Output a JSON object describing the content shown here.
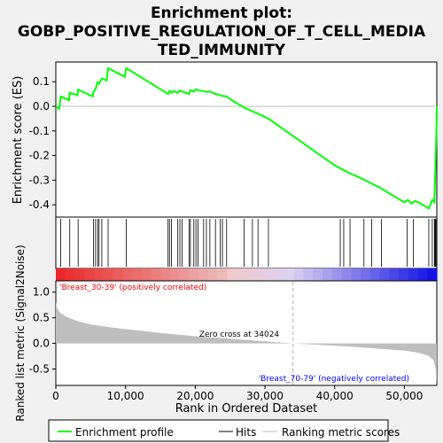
{
  "title": "Enrichment plot:\nGOBP_POSITIVE_REGULATION_OF_T_CELL_MEDIA\nTED_IMMUNITY",
  "title_lines": [
    "Enrichment plot:",
    "GOBP_POSITIVE_REGULATION_OF_T_CELL_MEDIA",
    "TED_IMMUNITY"
  ],
  "colors": {
    "es_line": "#00ff00",
    "hit_line": "#000000",
    "metric_fill": "#bebebe",
    "pos_label": "#ff0000",
    "neg_label": "#0000ff",
    "zero_line": "#bebebe",
    "background": "#f0f0f0",
    "plot_bg": "#ffffff"
  },
  "chart_data": {
    "type": "line",
    "x_max": 54650,
    "xlabel": "Rank in Ordered Dataset",
    "x_ticks": [
      0,
      10000,
      20000,
      30000,
      40000,
      50000
    ],
    "x_tick_labels": [
      "0",
      "10,000",
      "20,000",
      "30,000",
      "40,000",
      "50,000"
    ],
    "es_panel": {
      "ylabel": "Enrichment score (ES)",
      "ylim": [
        -0.45,
        0.18
      ],
      "y_ticks": [
        0.1,
        0.0,
        -0.1,
        -0.2,
        -0.3,
        -0.4
      ],
      "y_tick_labels": [
        "0.1",
        "0.0",
        "-0.1",
        "-0.2",
        "-0.3",
        "-0.4"
      ],
      "series_name": "Enrichment profile",
      "points": [
        [
          0,
          0.0
        ],
        [
          500,
          -0.01
        ],
        [
          700,
          0.04
        ],
        [
          1900,
          0.025
        ],
        [
          2000,
          0.055
        ],
        [
          3100,
          0.045
        ],
        [
          3200,
          0.068
        ],
        [
          5300,
          0.04
        ],
        [
          5400,
          0.058
        ],
        [
          5700,
          0.07
        ],
        [
          6000,
          0.098
        ],
        [
          6200,
          0.092
        ],
        [
          6600,
          0.113
        ],
        [
          7300,
          0.105
        ],
        [
          7500,
          0.155
        ],
        [
          9900,
          0.12
        ],
        [
          10100,
          0.155
        ],
        [
          16100,
          0.05
        ],
        [
          16300,
          0.063
        ],
        [
          16600,
          0.055
        ],
        [
          16900,
          0.062
        ],
        [
          17500,
          0.055
        ],
        [
          17800,
          0.065
        ],
        [
          18100,
          0.06
        ],
        [
          19100,
          0.05
        ],
        [
          19300,
          0.066
        ],
        [
          19800,
          0.06
        ],
        [
          20100,
          0.07
        ],
        [
          20400,
          0.064
        ],
        [
          21200,
          0.062
        ],
        [
          21600,
          0.058
        ],
        [
          22100,
          0.06
        ],
        [
          22900,
          0.05
        ],
        [
          23600,
          0.045
        ],
        [
          23900,
          0.042
        ],
        [
          24500,
          0.04
        ],
        [
          25500,
          0.02
        ],
        [
          27000,
          -0.005
        ],
        [
          28200,
          -0.02
        ],
        [
          29000,
          -0.03
        ],
        [
          30500,
          -0.05
        ],
        [
          35000,
          -0.14
        ],
        [
          40000,
          -0.24
        ],
        [
          41000,
          -0.255
        ],
        [
          42000,
          -0.27
        ],
        [
          44000,
          -0.295
        ],
        [
          45000,
          -0.31
        ],
        [
          46500,
          -0.33
        ],
        [
          47000,
          -0.34
        ],
        [
          50000,
          -0.39
        ],
        [
          50500,
          -0.38
        ],
        [
          51000,
          -0.395
        ],
        [
          51500,
          -0.385
        ],
        [
          52000,
          -0.39
        ],
        [
          53500,
          -0.415
        ],
        [
          54000,
          -0.38
        ],
        [
          54300,
          -0.39
        ],
        [
          54400,
          -0.3
        ],
        [
          54500,
          -0.2
        ],
        [
          54600,
          -0.1
        ],
        [
          54650,
          0.0
        ]
      ]
    },
    "hits_panel": {
      "series_name": "Hits",
      "hit_positions": [
        700,
        2000,
        3200,
        5400,
        5700,
        6000,
        6200,
        6600,
        7500,
        10100,
        16100,
        16300,
        16600,
        17500,
        17800,
        18100,
        19100,
        19300,
        19800,
        20100,
        20400,
        21200,
        21600,
        22100,
        22900,
        23600,
        23900,
        24500,
        27000,
        28200,
        29000,
        30500,
        40800,
        41300,
        42200,
        44200,
        45300,
        46700,
        50400,
        51300,
        53500,
        54000,
        54300,
        54400,
        54500,
        54600
      ]
    },
    "metric_panel": {
      "ylabel": "Ranked list metric (Signal2Noise)",
      "ylim": [
        -0.82,
        1.22
      ],
      "y_ticks": [
        1.0,
        0.5,
        0.0,
        -0.5
      ],
      "y_tick_labels": [
        "1.0",
        "0.5",
        "0.0",
        "-0.5"
      ],
      "series_name": "Ranking metric scores",
      "points": [
        [
          0,
          0.8
        ],
        [
          200,
          0.68
        ],
        [
          600,
          0.6
        ],
        [
          1500,
          0.52
        ],
        [
          3000,
          0.44
        ],
        [
          5000,
          0.37
        ],
        [
          8000,
          0.31
        ],
        [
          12000,
          0.25
        ],
        [
          16000,
          0.19
        ],
        [
          20000,
          0.14
        ],
        [
          25000,
          0.09
        ],
        [
          30000,
          0.04
        ],
        [
          34024,
          0.0
        ],
        [
          38000,
          -0.03
        ],
        [
          42000,
          -0.06
        ],
        [
          46000,
          -0.1
        ],
        [
          50000,
          -0.14
        ],
        [
          52000,
          -0.18
        ],
        [
          53500,
          -0.24
        ],
        [
          54200,
          -0.34
        ],
        [
          54500,
          -0.5
        ],
        [
          54650,
          -0.8
        ]
      ],
      "zero_cross_label": "Zero cross at 34024",
      "zero_cross_x": 34024,
      "pos_label": "'Breast_30-39' (positively correlated)",
      "neg_label": "'Breast_70-79' (negatively correlated)"
    },
    "legend": {
      "placement": "bottom",
      "entries": [
        "Enrichment profile",
        "Hits",
        "Ranking metric scores"
      ]
    }
  }
}
